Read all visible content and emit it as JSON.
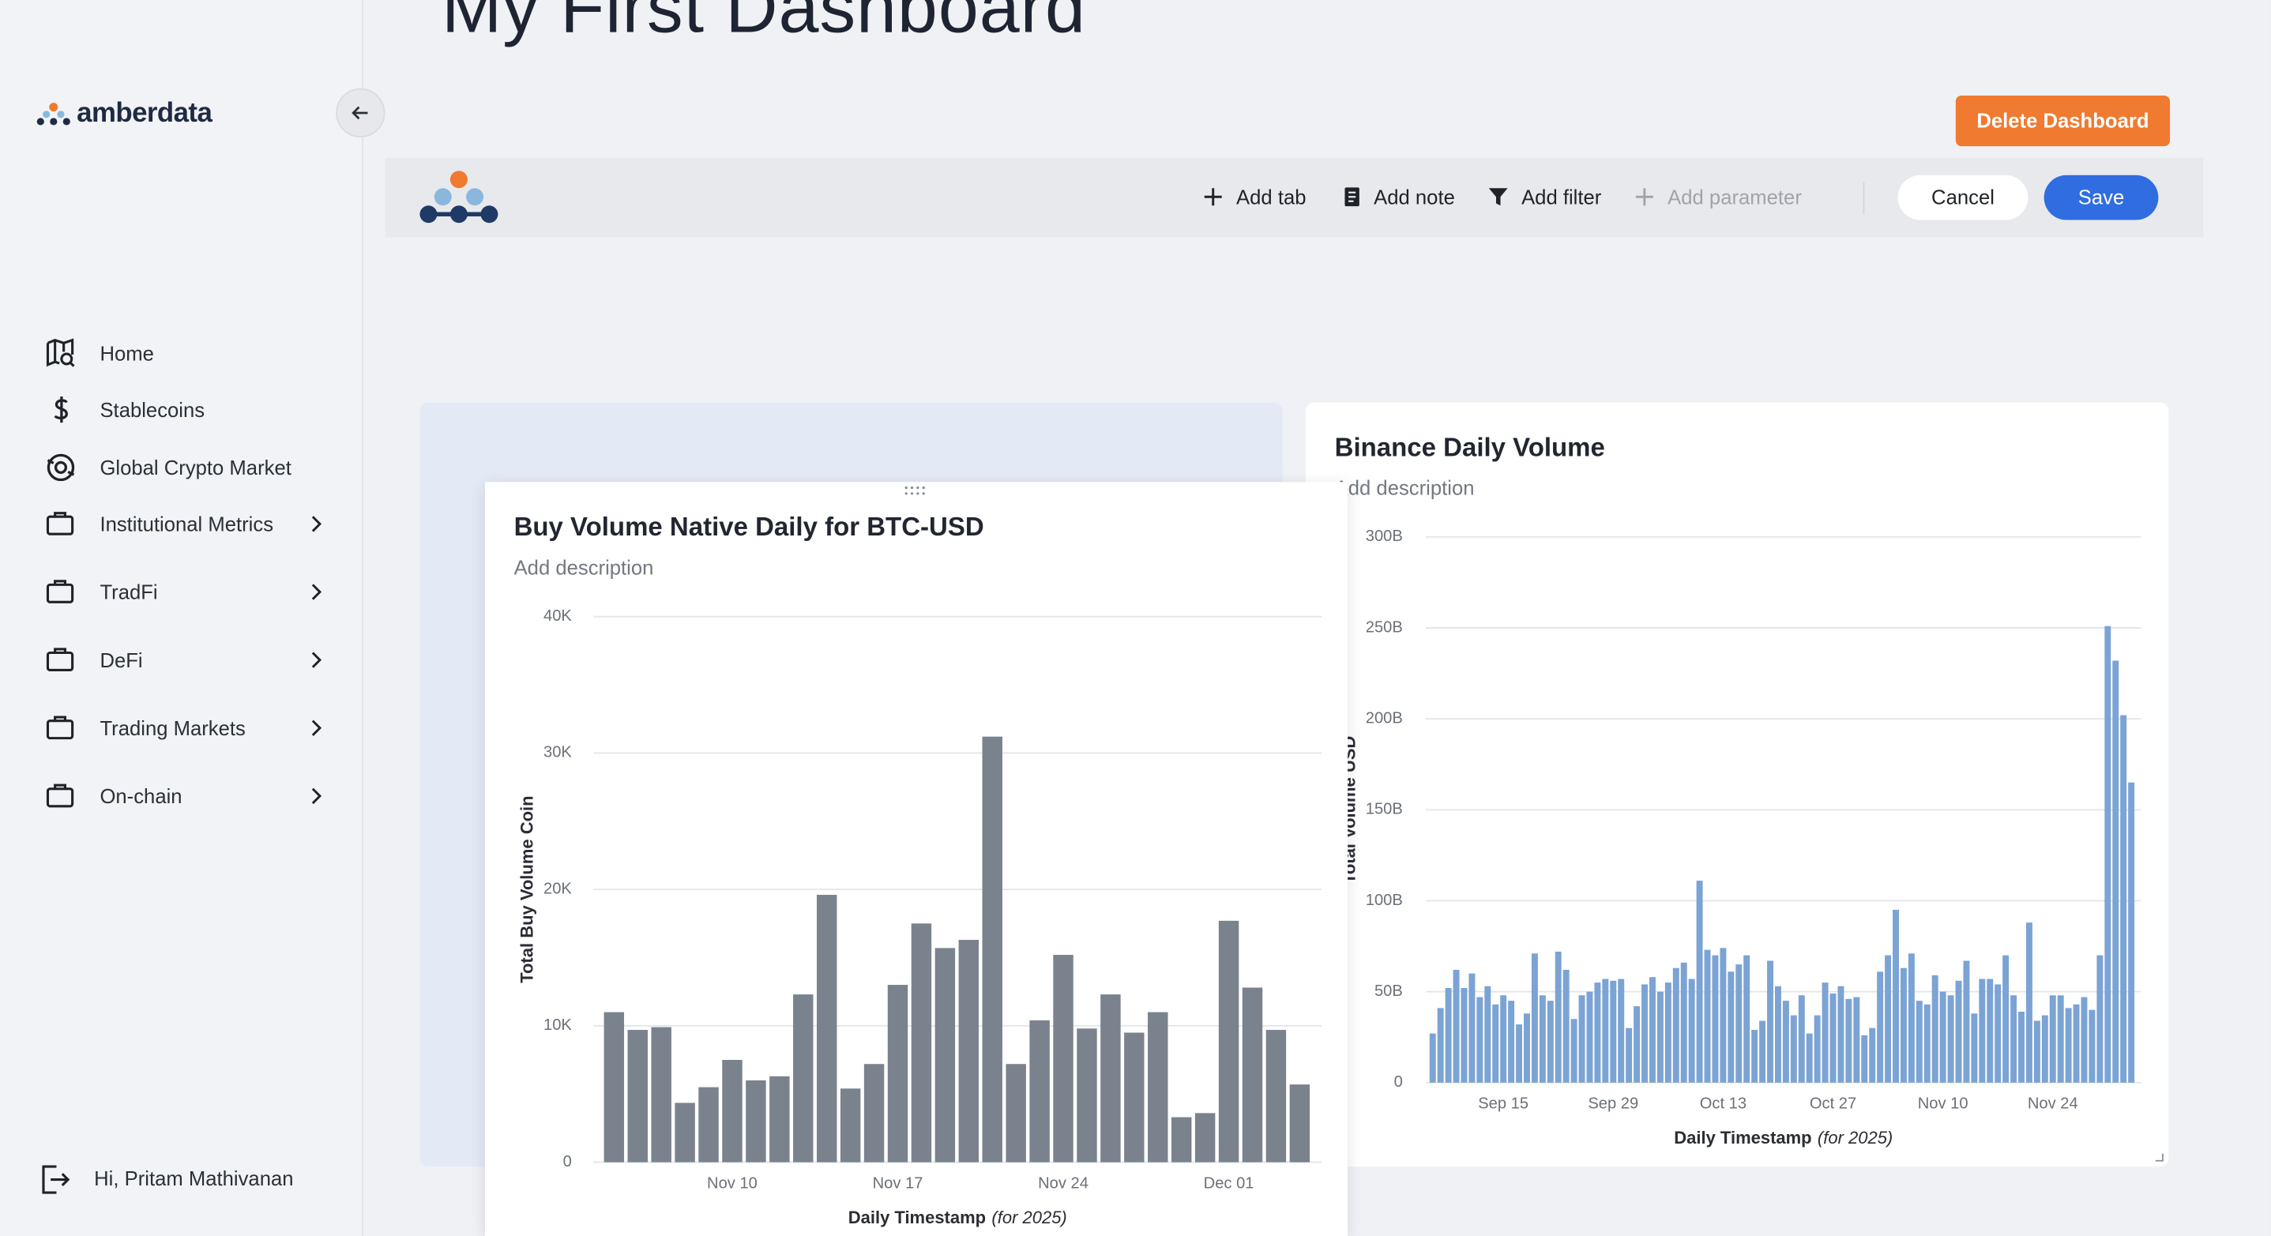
{
  "sidebar": {
    "brand": "amberdata",
    "nav": [
      "Home",
      "Stablecoins",
      "Global Crypto Market",
      "Institutional Metrics",
      "TradFi",
      "DeFi",
      "Trading Markets",
      "On-chain"
    ],
    "user": "Hi, Pritam Mathivanan"
  },
  "header": {
    "title": "My First Dashboard",
    "delete_button": "Delete Dashboard"
  },
  "toolbar": {
    "actions": [
      "Add tab",
      "Add note",
      "Add filter",
      "Add parameter"
    ],
    "cancel": "Cancel",
    "save": "Save"
  },
  "chart_data": [
    {
      "type": "bar",
      "title": "Buy Volume Native Daily for BTC-USD",
      "description": "Add description",
      "y_label": "Total Buy Volume Coin",
      "x_label": "Daily Timestamp",
      "x_label_note": "(for 2025)",
      "color": "#7a828d",
      "grid": true,
      "categories": [
        null,
        null,
        null,
        null,
        null,
        "Nov 10",
        null,
        null,
        null,
        null,
        null,
        null,
        "Nov 17",
        null,
        null,
        null,
        null,
        null,
        null,
        "Nov 24",
        null,
        null,
        null,
        null,
        null,
        null,
        "Dec 01",
        null,
        null,
        null
      ],
      "values": [
        11000,
        9700,
        9900,
        4350,
        5500,
        7500,
        6000,
        6300,
        12300,
        19600,
        5400,
        7200,
        13000,
        17500,
        15700,
        16300,
        31200,
        7200,
        10400,
        15200,
        9800,
        12300,
        9500,
        11000,
        3300,
        3600,
        17700,
        12800,
        9700,
        5700
      ],
      "ylim": [
        0,
        40000
      ],
      "yticks": [
        0,
        {
          "value": 10000,
          "label": "10K"
        },
        {
          "value": 20000,
          "label": "20K"
        },
        {
          "value": 30000,
          "label": "30K"
        },
        {
          "value": 40000,
          "label": "40K"
        }
      ]
    },
    {
      "type": "bar",
      "title": "Binance Daily Volume",
      "description": "Add description",
      "y_label": "Total Volume USD",
      "x_label": "Daily Timestamp",
      "x_label_note": "(for 2025)",
      "color": "#7ba3d4",
      "grid": true,
      "categories": [
        null,
        null,
        null,
        null,
        null,
        null,
        null,
        null,
        null,
        "Sep 15",
        null,
        null,
        null,
        null,
        null,
        null,
        null,
        null,
        null,
        null,
        null,
        null,
        null,
        "Sep 29",
        null,
        null,
        null,
        null,
        null,
        null,
        null,
        null,
        null,
        null,
        null,
        null,
        null,
        "Oct 13",
        null,
        null,
        null,
        null,
        null,
        null,
        null,
        null,
        null,
        null,
        null,
        null,
        null,
        "Oct 27",
        null,
        null,
        null,
        null,
        null,
        null,
        null,
        null,
        null,
        null,
        null,
        null,
        null,
        "Nov 10",
        null,
        null,
        null,
        null,
        null,
        null,
        null,
        null,
        null,
        null,
        null,
        null,
        null,
        "Nov 24",
        null,
        null,
        null,
        null,
        null,
        null,
        null,
        null,
        null,
        null
      ],
      "values": [
        27000000000.0,
        41000000000.0,
        52000000000.0,
        62000000000.0,
        52000000000.0,
        60000000000.0,
        47000000000.0,
        53000000000.0,
        43000000000.0,
        48000000000.0,
        45000000000.0,
        32000000000.0,
        38000000000.0,
        71000000000.0,
        48000000000.0,
        45000000000.0,
        72000000000.0,
        62000000000.0,
        35000000000.0,
        48000000000.0,
        50000000000.0,
        55000000000.0,
        57000000000.0,
        56000000000.0,
        57000000000.0,
        30000000000.0,
        42000000000.0,
        54000000000.0,
        58000000000.0,
        50000000000.0,
        55000000000.0,
        63000000000.0,
        66000000000.0,
        57000000000.0,
        111000000000.0,
        73000000000.0,
        70000000000.0,
        74000000000.0,
        61000000000.0,
        65000000000.0,
        70000000000.0,
        29000000000.0,
        34000000000.0,
        67000000000.0,
        53000000000.0,
        45000000000.0,
        37000000000.0,
        48000000000.0,
        27000000000.0,
        37000000000.0,
        55000000000.0,
        49000000000.0,
        53000000000.0,
        46000000000.0,
        47000000000.0,
        26000000000.0,
        30000000000.0,
        61000000000.0,
        70000000000.0,
        95000000000.0,
        63000000000.0,
        71000000000.0,
        45000000000.0,
        43000000000.0,
        59000000000.0,
        50000000000.0,
        48000000000.0,
        56000000000.0,
        67000000000.0,
        38000000000.0,
        57000000000.0,
        57000000000.0,
        54000000000.0,
        70000000000.0,
        48000000000.0,
        39000000000.0,
        88000000000.0,
        34000000000.0,
        37000000000.0,
        48000000000.0,
        48000000000.0,
        41000000000.0,
        43000000000.0,
        47000000000.0,
        40000000000.0,
        70000000000.0,
        251000000000.0,
        232000000000.0,
        202000000000.0,
        165000000000.0
      ],
      "ylim": [
        0,
        300000000000
      ],
      "yticks": [
        0,
        {
          "value": 50000000000,
          "label": "50B"
        },
        {
          "value": 100000000000,
          "label": "100B"
        },
        {
          "value": 150000000000,
          "label": "150B"
        },
        {
          "value": 200000000000,
          "label": "200B"
        },
        {
          "value": 250000000000,
          "label": "250B"
        },
        {
          "value": 300000000000,
          "label": "300B"
        }
      ]
    }
  ]
}
